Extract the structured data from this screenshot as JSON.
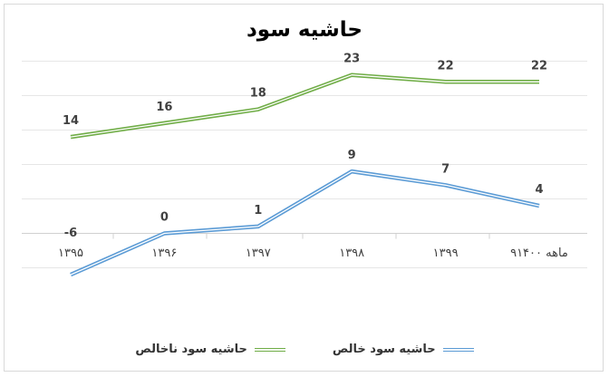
{
  "chart_data": {
    "type": "line",
    "title": "حاشیه سود",
    "categories": [
      "۱۳۹۵",
      "۱۳۹۶",
      "۱۳۹۷",
      "۱۳۹۸",
      "۱۳۹۹",
      "۹ماهه ۱۴۰۰"
    ],
    "series": [
      {
        "name": "حاشیه سود ناخالص",
        "values": [
          14,
          16,
          18,
          23,
          22,
          22
        ],
        "color": "#70ad47"
      },
      {
        "name": "حاشیه سود خالص",
        "values": [
          -6,
          0,
          1,
          9,
          7,
          4
        ],
        "color": "#5b9bd5"
      }
    ],
    "data_labels": [
      [
        "14",
        "16",
        "18",
        "23",
        "22",
        "22"
      ],
      [
        "-6",
        "0",
        "1",
        "9",
        "7",
        "4"
      ]
    ],
    "ylim": [
      -8,
      26
    ],
    "grid": true,
    "legend_position": "bottom"
  }
}
